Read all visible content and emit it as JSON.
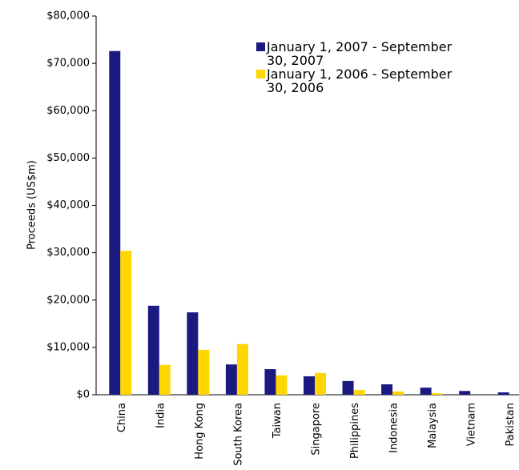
{
  "chart_data": {
    "type": "bar",
    "y_label": "Proceeds (US$m)",
    "categories": [
      "China",
      "India",
      "Hong Kong",
      "South Korea",
      "Taiwan",
      "Singapore",
      "Philippines",
      "Indonesia",
      "Malaysia",
      "Vietnam",
      "Pakistan"
    ],
    "series": [
      {
        "name": "January 1, 2007 - September 30, 2007",
        "color": "#1a1a80",
        "values": [
          72600,
          18800,
          17400,
          6400,
          5400,
          3900,
          2900,
          2200,
          1500,
          800,
          500
        ]
      },
      {
        "name": "January 1, 2006 - September 30, 2006",
        "color": "#ffd700",
        "values": [
          30400,
          6300,
          9500,
          10700,
          4100,
          4600,
          1000,
          700,
          300,
          0,
          0
        ]
      }
    ],
    "ylim": [
      0,
      80000
    ],
    "yticks": [
      {
        "value": 0,
        "label": "$0"
      },
      {
        "value": 10000,
        "label": "$10,000"
      },
      {
        "value": 20000,
        "label": "$20,000"
      },
      {
        "value": 30000,
        "label": "$30,000"
      },
      {
        "value": 40000,
        "label": "$40,000"
      },
      {
        "value": 50000,
        "label": "$50,000"
      },
      {
        "value": 60000,
        "label": "$60,000"
      },
      {
        "value": 70000,
        "label": "$70,000"
      },
      {
        "value": 80000,
        "label": "$80,000"
      }
    ],
    "legend": "upper right"
  }
}
